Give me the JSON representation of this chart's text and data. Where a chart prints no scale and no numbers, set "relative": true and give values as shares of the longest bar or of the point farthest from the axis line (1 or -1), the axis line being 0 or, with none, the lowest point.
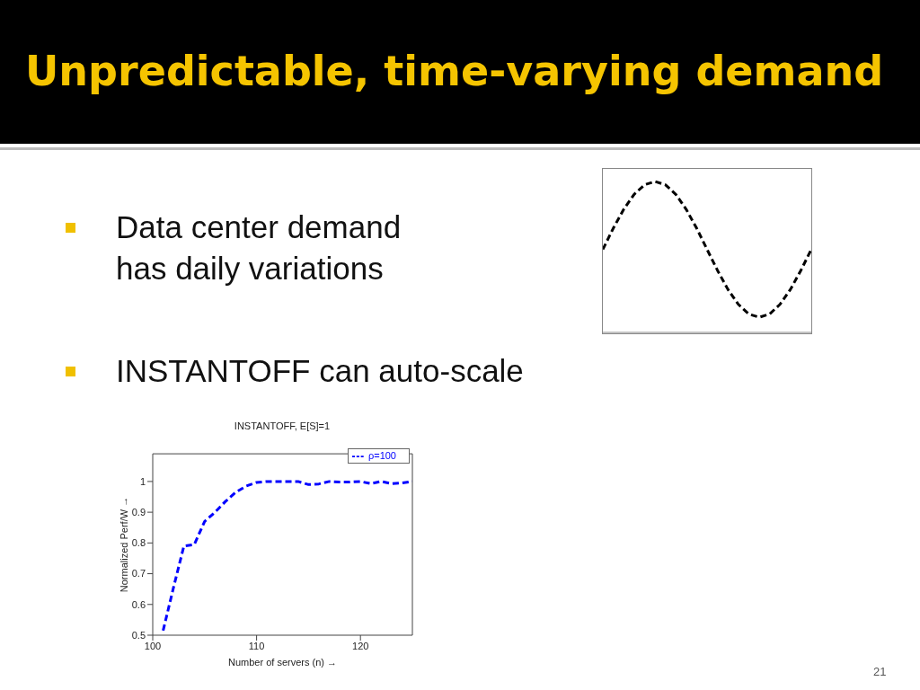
{
  "chart_data": [
    {
      "type": "other",
      "title": "Unpredictable, time-varying demand",
      "annotations": [
        "Data center demand\nhas daily variations",
        "INSTANTOFF can auto-scale",
        "21"
      ]
    },
    {
      "type": "line",
      "relative": true,
      "line_style": "dashed",
      "color": "#000000",
      "categories": [
        null,
        null,
        null,
        null,
        null,
        null,
        null,
        null,
        null,
        null,
        null,
        null,
        null,
        null,
        null,
        null,
        null,
        null,
        null,
        null,
        null
      ],
      "values": [
        0.55,
        0.69,
        0.815,
        0.915,
        0.978,
        1,
        0.978,
        0.915,
        0.815,
        0.69,
        0.55,
        0.411,
        0.285,
        0.186,
        0.122,
        0.1,
        0.122,
        0.186,
        0.285,
        0.411,
        0.55
      ]
    },
    {
      "type": "line",
      "title": "INSTANTOFF, E[S]=1",
      "xlabel": "Number of servers (n) →",
      "ylabel": "Normalized Perf/W →",
      "line_style": "dashed",
      "legend": "top right",
      "x": [
        101,
        102,
        103,
        104,
        105,
        106,
        107,
        108,
        109,
        110,
        111,
        112,
        113,
        114,
        115,
        116,
        117,
        118,
        119,
        120,
        121,
        122,
        123,
        124,
        125
      ],
      "series": [
        {
          "name": "ρ=100",
          "color": "#0000ff",
          "values": [
            0.515,
            0.655,
            0.79,
            0.795,
            0.87,
            0.9,
            0.935,
            0.965,
            0.985,
            0.997,
            1.0,
            1.0,
            1.0,
            1.0,
            0.99,
            0.992,
            1.0,
            0.998,
            0.998,
            1.0,
            0.993,
            1.0,
            0.993,
            0.995,
            1.0
          ]
        }
      ],
      "xlim": [
        100,
        125
      ],
      "xticks": [
        100,
        110,
        120
      ],
      "ylim": [
        0.5,
        1.09
      ],
      "yticks": [
        0.5,
        0.6,
        0.7,
        0.8,
        0.9,
        1
      ]
    }
  ]
}
